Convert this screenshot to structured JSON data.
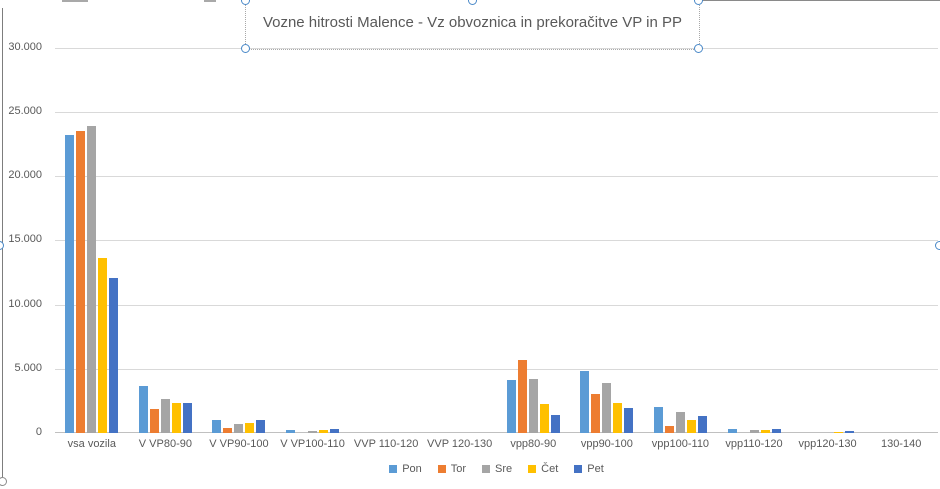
{
  "chart_data": {
    "type": "bar",
    "title": "Vozne hitrosti Malence - Vz obvoznica in prekoračitve VP in PP",
    "categories": [
      "vsa vozila",
      "V VP80-90",
      "V VP90-100",
      "V VP100-110",
      "VVP 110-120",
      "VVP 120-130",
      "vpp80-90",
      "vpp90-100",
      "vpp100-110",
      "vpp110-120",
      "vpp120-130",
      "130-140"
    ],
    "series": [
      {
        "name": "Pon",
        "color": "#5B9BD5",
        "values": [
          23200,
          3650,
          1050,
          250,
          0,
          0,
          4100,
          4850,
          2000,
          300,
          0,
          0
        ]
      },
      {
        "name": "Tor",
        "color": "#ED7D31",
        "values": [
          23500,
          1900,
          400,
          0,
          0,
          0,
          5700,
          3050,
          550,
          0,
          0,
          0
        ]
      },
      {
        "name": "Sre",
        "color": "#A5A5A5",
        "values": [
          23900,
          2650,
          700,
          130,
          0,
          0,
          4200,
          3900,
          1650,
          230,
          0,
          0
        ]
      },
      {
        "name": "Čet",
        "color": "#FFC000",
        "values": [
          13600,
          2350,
          750,
          200,
          0,
          0,
          2250,
          2350,
          1000,
          230,
          80,
          0
        ]
      },
      {
        "name": "Pet",
        "color": "#4472C4",
        "values": [
          12050,
          2300,
          1050,
          350,
          0,
          0,
          1400,
          1950,
          1300,
          300,
          150,
          0
        ]
      }
    ],
    "ylim": [
      0,
      30000
    ],
    "ytick_interval": 5000,
    "ytick_labels": [
      "0",
      "5.000",
      "10.000",
      "15.000",
      "20.000",
      "25.000",
      "30.000"
    ],
    "grid": true,
    "legend_position": "bottom"
  },
  "theme": {
    "gridline_color": "#D9D9D9",
    "axis_line_color": "#C0C0C0",
    "axis_text_color": "#595959",
    "selection_handle_color": "#4A89C8"
  }
}
